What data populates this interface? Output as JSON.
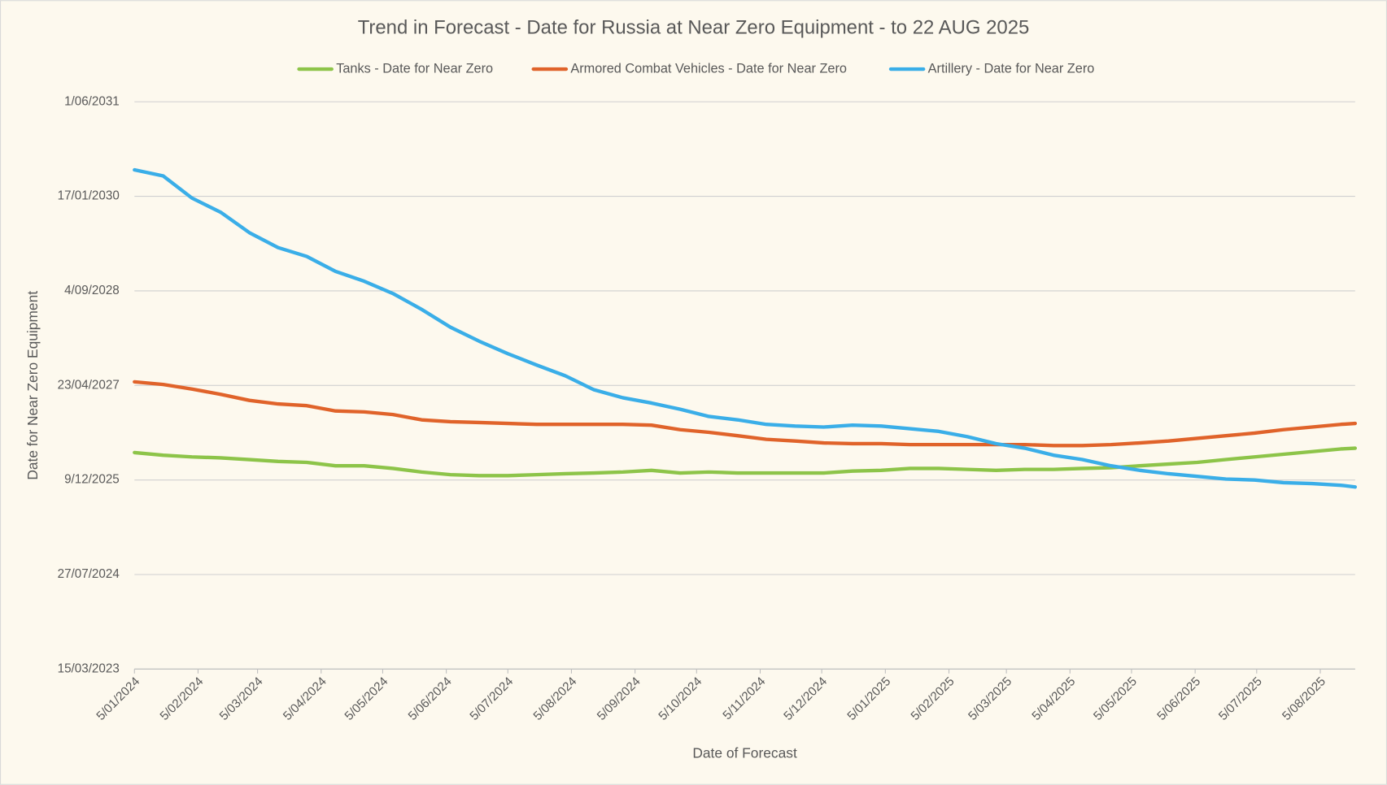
{
  "chart_data": {
    "type": "line",
    "title": "Trend in Forecast - Date for Russia at Near Zero Equipment - to 22 AUG 2025",
    "x_label": "Date of Forecast",
    "y_label": "Date for Near Zero Equipment",
    "legend": "top",
    "grid": true,
    "xlim": [
      45296,
      45891
    ],
    "xticks": [
      {
        "value": 45296,
        "label": "5/01/2024"
      },
      {
        "value": 45327,
        "label": "5/02/2024"
      },
      {
        "value": 45356,
        "label": "5/03/2024"
      },
      {
        "value": 45387,
        "label": "5/04/2024"
      },
      {
        "value": 45417,
        "label": "5/05/2024"
      },
      {
        "value": 45448,
        "label": "5/06/2024"
      },
      {
        "value": 45478,
        "label": "5/07/2024"
      },
      {
        "value": 45509,
        "label": "5/08/2024"
      },
      {
        "value": 45540,
        "label": "5/09/2024"
      },
      {
        "value": 45570,
        "label": "5/10/2024"
      },
      {
        "value": 45601,
        "label": "5/11/2024"
      },
      {
        "value": 45631,
        "label": "5/12/2024"
      },
      {
        "value": 45662,
        "label": "5/01/2025"
      },
      {
        "value": 45693,
        "label": "5/02/2025"
      },
      {
        "value": 45721,
        "label": "5/03/2025"
      },
      {
        "value": 45752,
        "label": "5/04/2025"
      },
      {
        "value": 45782,
        "label": "5/05/2025"
      },
      {
        "value": 45813,
        "label": "5/06/2025"
      },
      {
        "value": 45843,
        "label": "5/07/2025"
      },
      {
        "value": 45874,
        "label": "5/08/2025"
      }
    ],
    "ylim": [
      45000,
      48000
    ],
    "yticks": [
      {
        "value": 45000,
        "label": "15/03/2023"
      },
      {
        "value": 45500,
        "label": "27/07/2024"
      },
      {
        "value": 46000,
        "label": "9/12/2025"
      },
      {
        "value": 46500,
        "label": "23/04/2027"
      },
      {
        "value": 47000,
        "label": "4/09/2028"
      },
      {
        "value": 47500,
        "label": "17/01/2030"
      },
      {
        "value": 48000,
        "label": "1/06/2031"
      }
    ],
    "x": [
      45296,
      45310,
      45324,
      45338,
      45352,
      45366,
      45380,
      45394,
      45408,
      45422,
      45436,
      45450,
      45464,
      45478,
      45492,
      45506,
      45520,
      45534,
      45548,
      45562,
      45576,
      45590,
      45604,
      45618,
      45632,
      45646,
      45660,
      45674,
      45688,
      45702,
      45716,
      45730,
      45744,
      45758,
      45772,
      45786,
      45800,
      45814,
      45828,
      45842,
      45856,
      45870,
      45884,
      45891
    ],
    "series": [
      {
        "name": "Tanks - Date for Near Zero",
        "color": "#8dc449",
        "values": [
          46145,
          46131,
          46122,
          46117,
          46108,
          46098,
          46093,
          46075,
          46075,
          46061,
          46042,
          46028,
          46023,
          46023,
          46028,
          46033,
          46037,
          46042,
          46051,
          46037,
          46042,
          46037,
          46037,
          46037,
          46037,
          46047,
          46051,
          46061,
          46061,
          46056,
          46051,
          46056,
          46056,
          46061,
          46065,
          46075,
          46084,
          46093,
          46108,
          46122,
          46136,
          46150,
          46164,
          46168
        ]
      },
      {
        "name": "Armored Combat Vehicles - Date for Near Zero",
        "color": "#e0632a",
        "values": [
          46519,
          46505,
          46481,
          46453,
          46421,
          46402,
          46393,
          46365,
          46360,
          46346,
          46318,
          46308,
          46304,
          46299,
          46294,
          46294,
          46294,
          46294,
          46290,
          46266,
          46252,
          46234,
          46215,
          46206,
          46196,
          46192,
          46192,
          46187,
          46187,
          46187,
          46187,
          46187,
          46182,
          46182,
          46187,
          46196,
          46206,
          46220,
          46234,
          46248,
          46266,
          46280,
          46294,
          46299
        ]
      },
      {
        "name": "Artillery - Date for Near Zero",
        "color": "#3aaee8",
        "values": [
          47640,
          47608,
          47491,
          47416,
          47308,
          47229,
          47182,
          47103,
          47051,
          46986,
          46902,
          46808,
          46734,
          46668,
          46608,
          46551,
          46477,
          46435,
          46407,
          46374,
          46336,
          46318,
          46294,
          46285,
          46280,
          46290,
          46285,
          46271,
          46257,
          46229,
          46192,
          46168,
          46131,
          46108,
          46075,
          46051,
          46033,
          46019,
          46005,
          46000,
          45986,
          45981,
          45972,
          45963
        ]
      }
    ]
  }
}
